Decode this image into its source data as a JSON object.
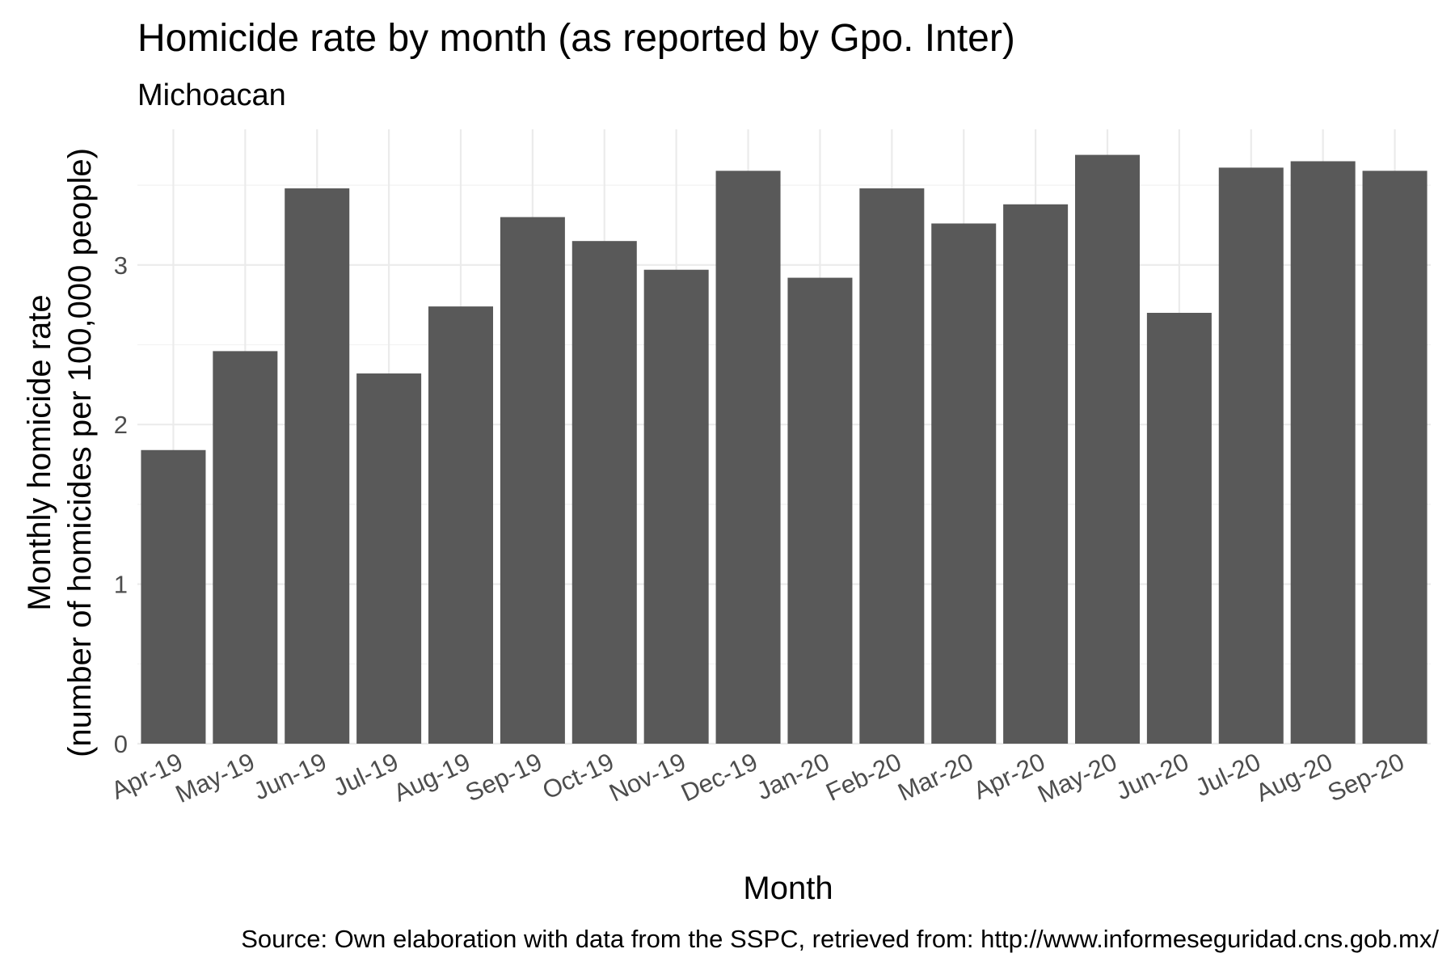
{
  "chart_data": {
    "type": "bar",
    "title": "Homicide rate by month (as reported by Gpo. Inter)",
    "subtitle": "Michoacan",
    "xlabel": "Month",
    "ylabel_line1": "Monthly homicide rate",
    "ylabel_line2": "(number of homicides per 100,000 people)",
    "caption": "Source: Own elaboration with data from the SSPC, retrieved from: http://www.informeseguridad.cns.gob.mx/",
    "categories": [
      "Apr-19",
      "May-19",
      "Jun-19",
      "Jul-19",
      "Aug-19",
      "Sep-19",
      "Oct-19",
      "Nov-19",
      "Dec-19",
      "Jan-20",
      "Feb-20",
      "Mar-20",
      "Apr-20",
      "May-20",
      "Jun-20",
      "Jul-20",
      "Aug-20",
      "Sep-20"
    ],
    "values": [
      1.84,
      2.46,
      3.48,
      2.32,
      2.74,
      3.3,
      3.15,
      2.97,
      3.59,
      2.92,
      3.48,
      3.26,
      3.38,
      3.69,
      2.7,
      3.61,
      3.65,
      3.59
    ],
    "ylim": [
      0,
      3.85
    ],
    "yticks": [
      "0",
      "1",
      "2",
      "3"
    ],
    "bar_color": "#595959",
    "grid": true,
    "legend": "none"
  }
}
